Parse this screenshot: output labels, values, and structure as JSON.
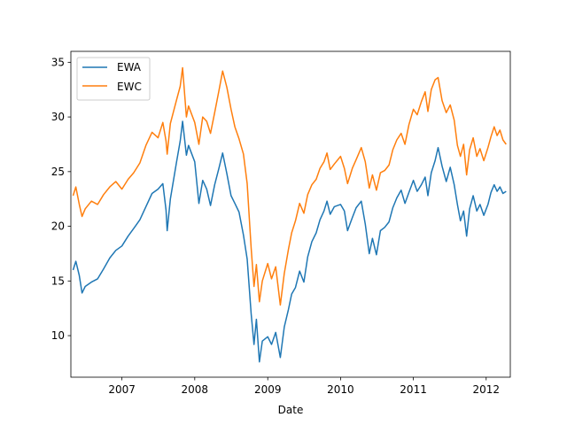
{
  "chart_data": {
    "type": "line",
    "title": "",
    "xlabel": "Date",
    "ylabel": "",
    "x_range": [
      "2006-04-20",
      "2012-05-01"
    ],
    "ylim": [
      6.2,
      36.0
    ],
    "x_ticks": [
      {
        "label": "2007",
        "date": "2007-01-01"
      },
      {
        "label": "2008",
        "date": "2008-01-01"
      },
      {
        "label": "2009",
        "date": "2009-01-01"
      },
      {
        "label": "2010",
        "date": "2010-01-01"
      },
      {
        "label": "2011",
        "date": "2011-01-01"
      },
      {
        "label": "2012",
        "date": "2012-01-01"
      }
    ],
    "y_ticks": [
      10,
      15,
      20,
      25,
      30,
      35
    ],
    "grid": false,
    "legend": "upper-left",
    "series": [
      {
        "name": "EWA",
        "color": "#1f77b4",
        "points": [
          [
            "2006-05-01",
            16.0
          ],
          [
            "2006-05-15",
            16.8
          ],
          [
            "2006-06-01",
            15.5
          ],
          [
            "2006-06-15",
            13.9
          ],
          [
            "2006-07-01",
            14.5
          ],
          [
            "2006-08-01",
            14.9
          ],
          [
            "2006-09-01",
            15.2
          ],
          [
            "2006-10-01",
            16.1
          ],
          [
            "2006-11-01",
            17.1
          ],
          [
            "2006-12-01",
            17.8
          ],
          [
            "2007-01-01",
            18.2
          ],
          [
            "2007-02-01",
            19.1
          ],
          [
            "2007-03-01",
            19.8
          ],
          [
            "2007-04-01",
            20.6
          ],
          [
            "2007-05-01",
            21.8
          ],
          [
            "2007-06-01",
            23.0
          ],
          [
            "2007-07-01",
            23.4
          ],
          [
            "2007-07-25",
            23.9
          ],
          [
            "2007-08-10",
            21.5
          ],
          [
            "2007-08-16",
            19.6
          ],
          [
            "2007-09-01",
            22.5
          ],
          [
            "2007-10-01",
            25.8
          ],
          [
            "2007-10-20",
            27.8
          ],
          [
            "2007-11-01",
            29.6
          ],
          [
            "2007-11-20",
            26.5
          ],
          [
            "2007-12-01",
            27.4
          ],
          [
            "2008-01-01",
            25.9
          ],
          [
            "2008-01-22",
            22.1
          ],
          [
            "2008-02-10",
            24.2
          ],
          [
            "2008-03-01",
            23.4
          ],
          [
            "2008-03-20",
            21.9
          ],
          [
            "2008-04-10",
            23.8
          ],
          [
            "2008-05-01",
            25.3
          ],
          [
            "2008-05-20",
            26.7
          ],
          [
            "2008-06-10",
            24.8
          ],
          [
            "2008-07-01",
            22.8
          ],
          [
            "2008-07-20",
            22.1
          ],
          [
            "2008-08-10",
            21.3
          ],
          [
            "2008-09-01",
            19.2
          ],
          [
            "2008-09-20",
            17.0
          ],
          [
            "2008-10-10",
            12.0
          ],
          [
            "2008-10-24",
            9.2
          ],
          [
            "2008-11-05",
            11.5
          ],
          [
            "2008-11-20",
            7.6
          ],
          [
            "2008-12-05",
            9.5
          ],
          [
            "2009-01-01",
            9.9
          ],
          [
            "2009-01-20",
            9.2
          ],
          [
            "2009-02-10",
            10.3
          ],
          [
            "2009-03-05",
            8.0
          ],
          [
            "2009-03-25",
            10.8
          ],
          [
            "2009-04-15",
            12.4
          ],
          [
            "2009-05-01",
            13.8
          ],
          [
            "2009-05-20",
            14.4
          ],
          [
            "2009-06-10",
            15.9
          ],
          [
            "2009-07-01",
            14.9
          ],
          [
            "2009-07-20",
            17.2
          ],
          [
            "2009-08-10",
            18.6
          ],
          [
            "2009-09-01",
            19.4
          ],
          [
            "2009-09-20",
            20.6
          ],
          [
            "2009-10-10",
            21.4
          ],
          [
            "2009-10-25",
            22.3
          ],
          [
            "2009-11-10",
            21.1
          ],
          [
            "2009-12-01",
            21.8
          ],
          [
            "2010-01-01",
            22.0
          ],
          [
            "2010-01-20",
            21.4
          ],
          [
            "2010-02-05",
            19.6
          ],
          [
            "2010-03-01",
            20.8
          ],
          [
            "2010-03-20",
            21.7
          ],
          [
            "2010-04-15",
            22.3
          ],
          [
            "2010-05-05",
            20.2
          ],
          [
            "2010-05-25",
            17.5
          ],
          [
            "2010-06-10",
            18.9
          ],
          [
            "2010-06-30",
            17.4
          ],
          [
            "2010-07-20",
            19.6
          ],
          [
            "2010-08-10",
            19.9
          ],
          [
            "2010-09-01",
            20.4
          ],
          [
            "2010-09-20",
            21.7
          ],
          [
            "2010-10-10",
            22.6
          ],
          [
            "2010-11-01",
            23.3
          ],
          [
            "2010-11-20",
            22.1
          ],
          [
            "2010-12-10",
            23.1
          ],
          [
            "2011-01-01",
            24.2
          ],
          [
            "2011-01-20",
            23.2
          ],
          [
            "2011-02-10",
            23.8
          ],
          [
            "2011-03-01",
            24.5
          ],
          [
            "2011-03-15",
            22.8
          ],
          [
            "2011-04-01",
            24.9
          ],
          [
            "2011-04-20",
            26.0
          ],
          [
            "2011-05-05",
            27.2
          ],
          [
            "2011-05-25",
            25.5
          ],
          [
            "2011-06-15",
            24.1
          ],
          [
            "2011-07-05",
            25.4
          ],
          [
            "2011-07-25",
            23.8
          ],
          [
            "2011-08-10",
            22.0
          ],
          [
            "2011-08-25",
            20.5
          ],
          [
            "2011-09-10",
            21.4
          ],
          [
            "2011-09-25",
            19.1
          ],
          [
            "2011-10-10",
            21.6
          ],
          [
            "2011-10-28",
            22.8
          ],
          [
            "2011-11-15",
            21.4
          ],
          [
            "2011-12-01",
            22.0
          ],
          [
            "2011-12-20",
            21.0
          ],
          [
            "2012-01-10",
            22.0
          ],
          [
            "2012-01-25",
            23.1
          ],
          [
            "2012-02-10",
            23.8
          ],
          [
            "2012-02-25",
            23.2
          ],
          [
            "2012-03-10",
            23.6
          ],
          [
            "2012-03-25",
            23.0
          ],
          [
            "2012-04-10",
            23.2
          ]
        ]
      },
      {
        "name": "EWC",
        "color": "#ff7f0e",
        "points": [
          [
            "2006-05-01",
            22.8
          ],
          [
            "2006-05-15",
            23.6
          ],
          [
            "2006-06-01",
            22.0
          ],
          [
            "2006-06-15",
            20.9
          ],
          [
            "2006-07-01",
            21.6
          ],
          [
            "2006-08-01",
            22.3
          ],
          [
            "2006-09-01",
            22.0
          ],
          [
            "2006-10-01",
            22.9
          ],
          [
            "2006-11-01",
            23.6
          ],
          [
            "2006-12-01",
            24.1
          ],
          [
            "2007-01-01",
            23.4
          ],
          [
            "2007-02-01",
            24.3
          ],
          [
            "2007-03-01",
            24.9
          ],
          [
            "2007-04-01",
            25.8
          ],
          [
            "2007-05-01",
            27.4
          ],
          [
            "2007-06-01",
            28.6
          ],
          [
            "2007-07-01",
            28.1
          ],
          [
            "2007-07-25",
            29.5
          ],
          [
            "2007-08-10",
            27.8
          ],
          [
            "2007-08-16",
            26.6
          ],
          [
            "2007-09-01",
            29.4
          ],
          [
            "2007-10-01",
            31.5
          ],
          [
            "2007-10-20",
            32.8
          ],
          [
            "2007-11-01",
            34.5
          ],
          [
            "2007-11-20",
            30.0
          ],
          [
            "2007-12-01",
            31.0
          ],
          [
            "2008-01-01",
            29.5
          ],
          [
            "2008-01-22",
            27.5
          ],
          [
            "2008-02-10",
            30.0
          ],
          [
            "2008-03-01",
            29.6
          ],
          [
            "2008-03-20",
            28.5
          ],
          [
            "2008-04-10",
            30.4
          ],
          [
            "2008-05-01",
            32.4
          ],
          [
            "2008-05-20",
            34.2
          ],
          [
            "2008-06-10",
            32.7
          ],
          [
            "2008-07-01",
            30.7
          ],
          [
            "2008-07-20",
            29.1
          ],
          [
            "2008-08-10",
            28.0
          ],
          [
            "2008-09-01",
            26.6
          ],
          [
            "2008-09-20",
            23.9
          ],
          [
            "2008-10-10",
            18.0
          ],
          [
            "2008-10-24",
            14.5
          ],
          [
            "2008-11-05",
            16.5
          ],
          [
            "2008-11-20",
            13.1
          ],
          [
            "2008-12-05",
            15.0
          ],
          [
            "2009-01-01",
            16.6
          ],
          [
            "2009-01-20",
            15.2
          ],
          [
            "2009-02-10",
            16.3
          ],
          [
            "2009-03-05",
            12.8
          ],
          [
            "2009-03-25",
            15.7
          ],
          [
            "2009-04-15",
            17.9
          ],
          [
            "2009-05-01",
            19.4
          ],
          [
            "2009-05-20",
            20.5
          ],
          [
            "2009-06-10",
            22.1
          ],
          [
            "2009-07-01",
            21.2
          ],
          [
            "2009-07-20",
            22.9
          ],
          [
            "2009-08-10",
            23.8
          ],
          [
            "2009-09-01",
            24.3
          ],
          [
            "2009-09-20",
            25.3
          ],
          [
            "2009-10-10",
            25.9
          ],
          [
            "2009-10-25",
            26.7
          ],
          [
            "2009-11-10",
            25.2
          ],
          [
            "2009-12-01",
            25.7
          ],
          [
            "2010-01-01",
            26.4
          ],
          [
            "2010-01-20",
            25.3
          ],
          [
            "2010-02-05",
            23.9
          ],
          [
            "2010-03-01",
            25.3
          ],
          [
            "2010-03-20",
            26.1
          ],
          [
            "2010-04-15",
            27.2
          ],
          [
            "2010-05-05",
            25.9
          ],
          [
            "2010-05-25",
            23.5
          ],
          [
            "2010-06-10",
            24.7
          ],
          [
            "2010-06-30",
            23.3
          ],
          [
            "2010-07-20",
            24.9
          ],
          [
            "2010-08-10",
            25.1
          ],
          [
            "2010-09-01",
            25.6
          ],
          [
            "2010-09-20",
            27.0
          ],
          [
            "2010-10-10",
            27.9
          ],
          [
            "2010-11-01",
            28.5
          ],
          [
            "2010-11-20",
            27.5
          ],
          [
            "2010-12-10",
            29.3
          ],
          [
            "2011-01-01",
            30.7
          ],
          [
            "2011-01-20",
            30.2
          ],
          [
            "2011-02-10",
            31.4
          ],
          [
            "2011-03-01",
            32.3
          ],
          [
            "2011-03-15",
            30.5
          ],
          [
            "2011-04-01",
            32.5
          ],
          [
            "2011-04-20",
            33.4
          ],
          [
            "2011-05-05",
            33.6
          ],
          [
            "2011-05-25",
            31.5
          ],
          [
            "2011-06-15",
            30.4
          ],
          [
            "2011-07-05",
            31.1
          ],
          [
            "2011-07-25",
            29.7
          ],
          [
            "2011-08-10",
            27.4
          ],
          [
            "2011-08-25",
            26.4
          ],
          [
            "2011-09-10",
            27.5
          ],
          [
            "2011-09-25",
            24.7
          ],
          [
            "2011-10-10",
            27.0
          ],
          [
            "2011-10-28",
            28.1
          ],
          [
            "2011-11-15",
            26.4
          ],
          [
            "2011-12-01",
            27.1
          ],
          [
            "2011-12-20",
            26.0
          ],
          [
            "2012-01-10",
            27.2
          ],
          [
            "2012-01-25",
            28.2
          ],
          [
            "2012-02-10",
            29.1
          ],
          [
            "2012-02-25",
            28.3
          ],
          [
            "2012-03-10",
            28.8
          ],
          [
            "2012-03-25",
            27.9
          ],
          [
            "2012-04-10",
            27.5
          ]
        ]
      }
    ]
  }
}
